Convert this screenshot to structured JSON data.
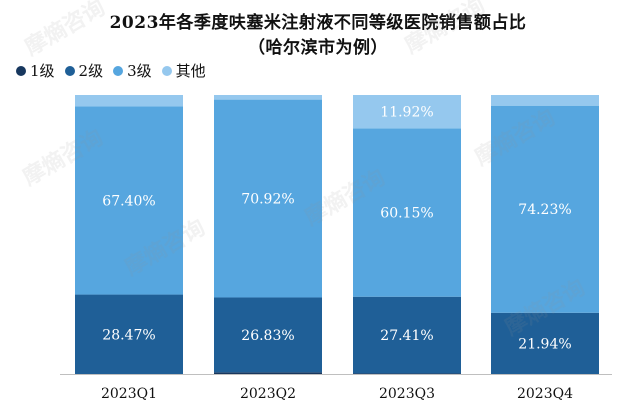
{
  "chart_data": {
    "type": "bar",
    "stacked": true,
    "title": "2023年各季度呋塞米注射液不同等级医院销售额占比",
    "subtitle": "（哈尔滨市为例）",
    "categories": [
      "2023Q1",
      "2023Q2",
      "2023Q3",
      "2023Q4"
    ],
    "series": [
      {
        "name": "1级",
        "color": "#17375e",
        "values": [
          0.0,
          0.6,
          0.2,
          0.0
        ],
        "labels": [
          "",
          "",
          "",
          ""
        ]
      },
      {
        "name": "2级",
        "color": "#1f5f97",
        "values": [
          28.47,
          26.83,
          27.41,
          21.94
        ],
        "labels": [
          "28.47%",
          "26.83%",
          "27.41%",
          "21.94%"
        ]
      },
      {
        "name": "3级",
        "color": "#56a6df",
        "values": [
          67.4,
          70.92,
          60.15,
          74.23
        ],
        "labels": [
          "67.40%",
          "70.92%",
          "60.15%",
          "74.23%"
        ]
      },
      {
        "name": "其他",
        "color": "#95c8ee",
        "values": [
          4.13,
          1.65,
          11.92,
          3.83
        ],
        "labels": [
          "",
          "",
          "11.92%",
          ""
        ]
      }
    ],
    "ylim": [
      0,
      100
    ],
    "legend_position": "top-left"
  },
  "watermark": "摩熵咨询"
}
